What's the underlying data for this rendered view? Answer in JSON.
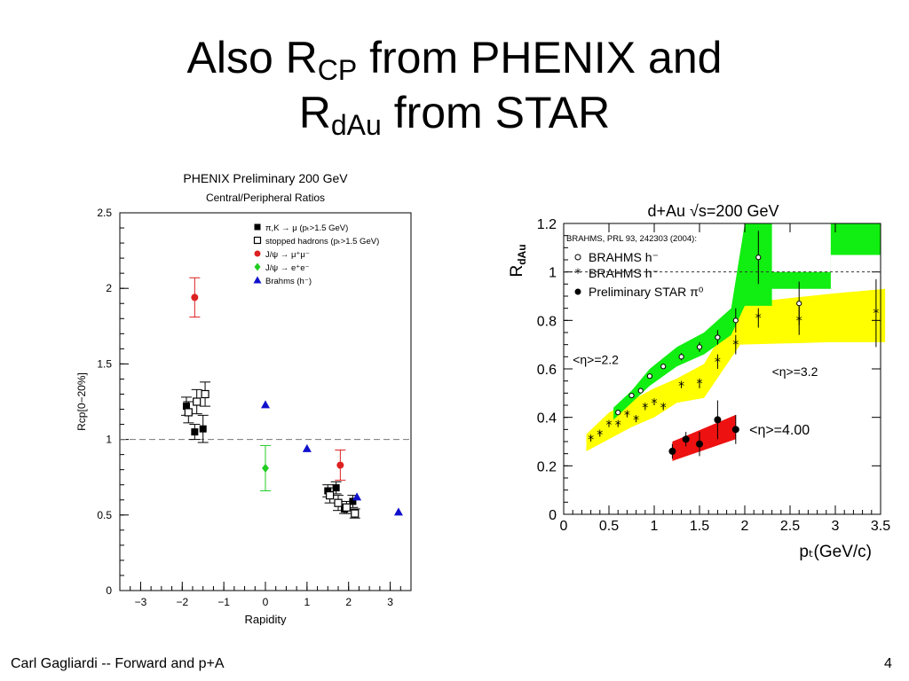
{
  "slide": {
    "title_line1_pre": "Also R",
    "title_line1_sub": "CP",
    "title_line1_post": " from PHENIX and",
    "title_line2_pre": "R",
    "title_line2_sub": "dAu",
    "title_line2_post": " from STAR",
    "footer_left": "Carl Gagliardi -- Forward and p+A",
    "footer_right": "4"
  },
  "colors": {
    "red": "#dd2020",
    "green": "#22cc22",
    "blue": "#1010cc",
    "band_green": "#11ee11",
    "band_yellow": "#ffff00",
    "band_red": "#ee1111"
  },
  "chart_data": [
    {
      "type": "scatter",
      "title": "PHENIX Preliminary  200 GeV",
      "subtitle": "Central/Peripheral Ratios",
      "xlabel": "Rapidity",
      "ylabel": "Rcp[0−20%]",
      "xlim": [
        -3.5,
        3.5
      ],
      "ylim": [
        0,
        2.5
      ],
      "xticks": [
        "−3",
        "−2",
        "−1",
        "0",
        "1",
        "2",
        "3"
      ],
      "yticks": [
        "0",
        "0.5",
        "1",
        "1.5",
        "2",
        "2.5"
      ],
      "reference_line": 1,
      "grid": false,
      "legend_position": "top-right",
      "series": [
        {
          "name": "π,K → μ  (pₜ>1.5 GeV)",
          "marker": "filled-square",
          "color": "#000000",
          "points": [
            [
              -1.9,
              1.22,
              0.06
            ],
            [
              -1.7,
              1.05,
              0.05
            ],
            [
              -1.5,
              1.07,
              0.09
            ],
            [
              1.5,
              0.66,
              0.04
            ],
            [
              1.7,
              0.68,
              0.04
            ],
            [
              1.9,
              0.54,
              0.03
            ],
            [
              2.1,
              0.59,
              0.04
            ]
          ]
        },
        {
          "name": "stopped hadrons (pₜ>1.5 GeV)",
          "marker": "open-square",
          "color": "#000000",
          "points": [
            [
              -1.85,
              1.18,
              0.07
            ],
            [
              -1.65,
              1.25,
              0.08
            ],
            [
              -1.45,
              1.3,
              0.08
            ],
            [
              1.55,
              0.63,
              0.05
            ],
            [
              1.75,
              0.58,
              0.05
            ],
            [
              1.95,
              0.55,
              0.04
            ],
            [
              2.15,
              0.51,
              0.03
            ]
          ]
        },
        {
          "name": "J/ψ → μ⁺μ⁻",
          "marker": "filled-circle",
          "color": "#dd2020",
          "points": [
            [
              -1.7,
              1.94,
              0.13
            ],
            [
              1.8,
              0.83,
              0.1
            ]
          ]
        },
        {
          "name": "J/ψ → e⁺e⁻",
          "marker": "filled-diamond",
          "color": "#22cc22",
          "points": [
            [
              0,
              0.81,
              0.15
            ]
          ]
        },
        {
          "name": "Brahms (h⁻)",
          "marker": "filled-triangle",
          "color": "#1010cc",
          "points": [
            [
              0,
              1.23,
              0
            ],
            [
              1,
              0.94,
              0
            ],
            [
              2.2,
              0.62,
              0
            ],
            [
              3.2,
              0.52,
              0
            ]
          ]
        }
      ]
    },
    {
      "type": "scatter",
      "title": "d+Au √s=200 GeV",
      "xlabel": "pₜ(GeV/c)",
      "ylabel": "Rᵈᴬᵘ",
      "ylabel_main": "R",
      "ylabel_sub": "dAu",
      "xlim": [
        0,
        3.5
      ],
      "ylim": [
        0,
        1.2
      ],
      "xticks": [
        "0",
        "0.5",
        "1",
        "1.5",
        "2",
        "2.5",
        "3",
        "3.5"
      ],
      "yticks": [
        "0",
        "0.2",
        "0.4",
        "0.6",
        "0.8",
        "1",
        "1.2"
      ],
      "reference_line": 1,
      "grid": false,
      "legend_position": "top-left",
      "legend_header": "BRAHMS, PRL 93, 242303 (2004):",
      "annotations": [
        "<η>=2.2",
        "<η>=3.2",
        "<η>=4.00"
      ],
      "series": [
        {
          "name": "BRAHMS h⁻",
          "annotation": "<η>=2.2",
          "marker": "open-circle",
          "color": "#000000",
          "points": [
            [
              0.6,
              0.42,
              0.01
            ],
            [
              0.75,
              0.49,
              0.01
            ],
            [
              0.85,
              0.51,
              0.01
            ],
            [
              0.95,
              0.57,
              0.01
            ],
            [
              1.1,
              0.61,
              0.01
            ],
            [
              1.3,
              0.65,
              0.015
            ],
            [
              1.5,
              0.69,
              0.02
            ],
            [
              1.7,
              0.73,
              0.03
            ],
            [
              1.9,
              0.8,
              0.05
            ],
            [
              2.15,
              1.06,
              0.11
            ],
            [
              2.6,
              0.87,
              0.09
            ]
          ],
          "band_color": "#11ee11",
          "band": [
            [
              0.55,
              0.39,
              0.44
            ],
            [
              0.75,
              0.46,
              0.51
            ],
            [
              0.95,
              0.53,
              0.6
            ],
            [
              1.25,
              0.61,
              0.69
            ],
            [
              1.55,
              0.66,
              0.75
            ],
            [
              1.85,
              0.74,
              0.85
            ],
            [
              2.0,
              0.86,
              1.2
            ],
            [
              2.3,
              0.86,
              1.2
            ],
            [
              2.3,
              0.93,
              1.2
            ],
            [
              2.95,
              0.93,
              1.2
            ]
          ],
          "band_top_box": [
            3.6,
            1.07,
            1.2
          ]
        },
        {
          "name": "BRAHMS h⁻",
          "annotation": "<η>=3.2",
          "marker": "star",
          "color": "#000000",
          "points": [
            [
              0.3,
              0.31,
              0.01
            ],
            [
              0.4,
              0.33,
              0.01
            ],
            [
              0.5,
              0.37,
              0.01
            ],
            [
              0.6,
              0.37,
              0.01
            ],
            [
              0.7,
              0.41,
              0.01
            ],
            [
              0.8,
              0.39,
              0.01
            ],
            [
              0.9,
              0.44,
              0.01
            ],
            [
              1.0,
              0.46,
              0.01
            ],
            [
              1.1,
              0.44,
              0.01
            ],
            [
              1.3,
              0.53,
              0.01
            ],
            [
              1.5,
              0.54,
              0.02
            ],
            [
              1.7,
              0.63,
              0.03
            ],
            [
              1.9,
              0.7,
              0.04
            ],
            [
              2.15,
              0.81,
              0.04
            ],
            [
              2.6,
              0.8,
              0.06
            ],
            [
              3.45,
              0.83,
              0.14
            ]
          ],
          "band_color": "#ffff00",
          "band": [
            [
              0.25,
              0.26,
              0.33
            ],
            [
              0.5,
              0.31,
              0.42
            ],
            [
              0.75,
              0.36,
              0.47
            ],
            [
              1.0,
              0.4,
              0.52
            ],
            [
              1.25,
              0.46,
              0.56
            ],
            [
              1.55,
              0.48,
              0.62
            ],
            [
              1.95,
              0.7,
              0.87
            ],
            [
              2.95,
              0.71,
              0.91
            ],
            [
              3.55,
              0.71,
              0.93
            ]
          ]
        },
        {
          "name": "Preliminary STAR π⁰",
          "annotation": "<η>=4.00",
          "marker": "filled-circle",
          "color": "#000000",
          "points": [
            [
              1.2,
              0.26,
              0.03
            ],
            [
              1.35,
              0.31,
              0.03
            ],
            [
              1.5,
              0.29,
              0.05
            ],
            [
              1.7,
              0.39,
              0.08
            ],
            [
              1.9,
              0.35,
              0.06
            ]
          ],
          "band_color": "#ee1111",
          "band_poly": [
            [
              1.2,
              0.22
            ],
            [
              1.9,
              0.31
            ],
            [
              1.9,
              0.41
            ],
            [
              1.2,
              0.3
            ]
          ]
        }
      ]
    }
  ]
}
